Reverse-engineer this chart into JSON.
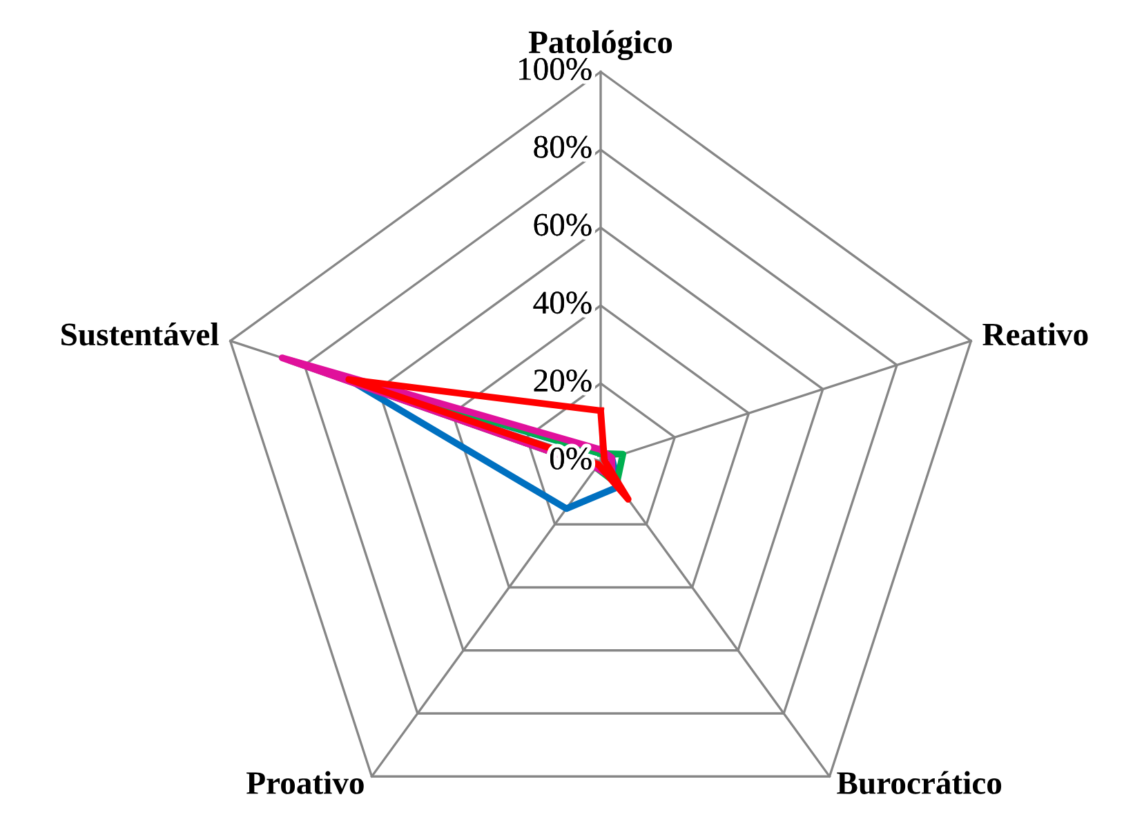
{
  "chart_data": {
    "type": "radar",
    "categories": [
      "Patológico",
      "Reativo",
      "Burocrático",
      "Proativo",
      "Sustentável"
    ],
    "ylim": [
      0,
      100
    ],
    "yticks": [
      {
        "value": 0,
        "label": "0%"
      },
      {
        "value": 20,
        "label": "20%"
      },
      {
        "value": 40,
        "label": "40%"
      },
      {
        "value": 60,
        "label": "60%"
      },
      {
        "value": 80,
        "label": "80%"
      },
      {
        "value": 100,
        "label": "100%"
      }
    ],
    "grid": true,
    "marker": "none",
    "line_style": "solid",
    "series": [
      {
        "color": "#0070c0",
        "values": [
          2,
          3,
          8,
          15,
          68
        ]
      },
      {
        "color": "#00b050",
        "values": [
          2,
          6,
          7,
          2,
          84
        ]
      },
      {
        "color": "#e0119b",
        "values": [
          3,
          3,
          5,
          2,
          86
        ]
      },
      {
        "color": "#ff0000",
        "values": [
          13,
          1,
          12,
          1,
          68
        ]
      }
    ]
  }
}
